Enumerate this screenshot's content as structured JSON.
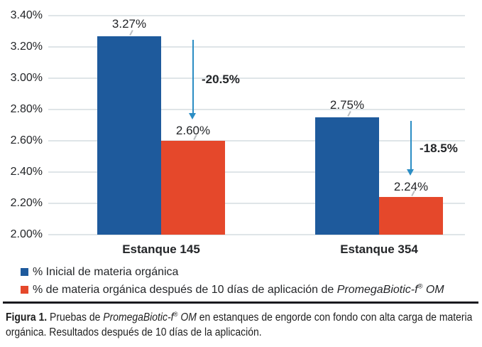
{
  "legend": {
    "items": [
      {
        "text": "% Inicial de materia orgánica"
      },
      {
        "text": "% de materia orgánica después de 10 días de aplicación de ",
        "italic": "PromegaBiotic-f",
        "sup": "®",
        "italic2": " OM"
      }
    ]
  },
  "caption": {
    "label": "Figura 1.",
    "text1": " Pruebas de ",
    "italic1": "PromegaBiotic-f",
    "sup1": "®",
    "italic2": " OM",
    "text2": " en estanques de engorde con fondo con alta carga de materia orgánica. Resultados después de 10 días de la aplicación."
  },
  "chart_data": {
    "type": "bar",
    "categories": [
      "Estanque 145",
      "Estanque 354"
    ],
    "series": [
      {
        "name": "% Inicial de materia orgánica",
        "color": "#1e5a9c",
        "values": [
          3.27,
          2.75
        ],
        "labels": [
          "3.27%",
          "2.75%"
        ]
      },
      {
        "name": "% de materia orgánica después de 10 días de aplicación de PromegaBiotic-f® OM",
        "color": "#e5482b",
        "values": [
          2.6,
          2.24
        ],
        "labels": [
          "2.60%",
          "2.24%"
        ]
      }
    ],
    "annotations": [
      {
        "category": "Estanque 145",
        "label": "-20.5%"
      },
      {
        "category": "Estanque 354",
        "label": "-18.5%"
      }
    ],
    "y_axis": {
      "min": 2.0,
      "max": 3.4,
      "step": 0.2,
      "tick_labels": [
        "3.40%",
        "3.20%",
        "3.00%",
        "2.80%",
        "2.60%",
        "2.40%",
        "2.20%",
        "2.00%"
      ]
    },
    "grid": true,
    "legend_position": "bottom",
    "arrow_color": "#2b8dc4",
    "gridline_color": "#dfe5e8"
  }
}
